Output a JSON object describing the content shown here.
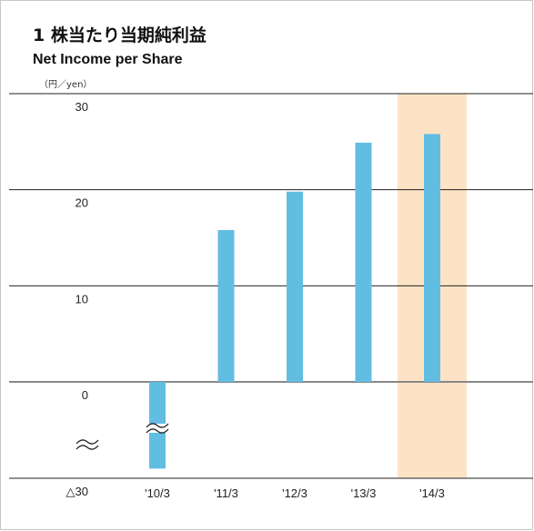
{
  "title_ja": "1 株当たり当期純利益",
  "title_en": "Net Income per Share",
  "unit": "（円／yen）",
  "colors": {
    "bar": "#62bde3",
    "highlight": "#fde3c6",
    "gridline": "#222222",
    "zero_line": "#888888"
  },
  "chart_data": {
    "type": "bar",
    "categories": [
      "'10/3",
      "'11/3",
      "'12/3",
      "'13/3",
      "'14/3"
    ],
    "values": [
      -27,
      15.8,
      19.8,
      24.9,
      25.8
    ],
    "highlight_category": "'14/3",
    "y_ticks": [
      {
        "value": 30,
        "label": "30"
      },
      {
        "value": 20,
        "label": "20"
      },
      {
        "value": 10,
        "label": "10"
      },
      {
        "value": 0,
        "label": "0"
      },
      {
        "value": -30,
        "label": "△30"
      }
    ],
    "ylim": [
      -30,
      30
    ],
    "axis_break": "-30 to 0 axis compressed; break marks on y-axis and '10/3 bar",
    "grid": true,
    "legend": "none"
  }
}
